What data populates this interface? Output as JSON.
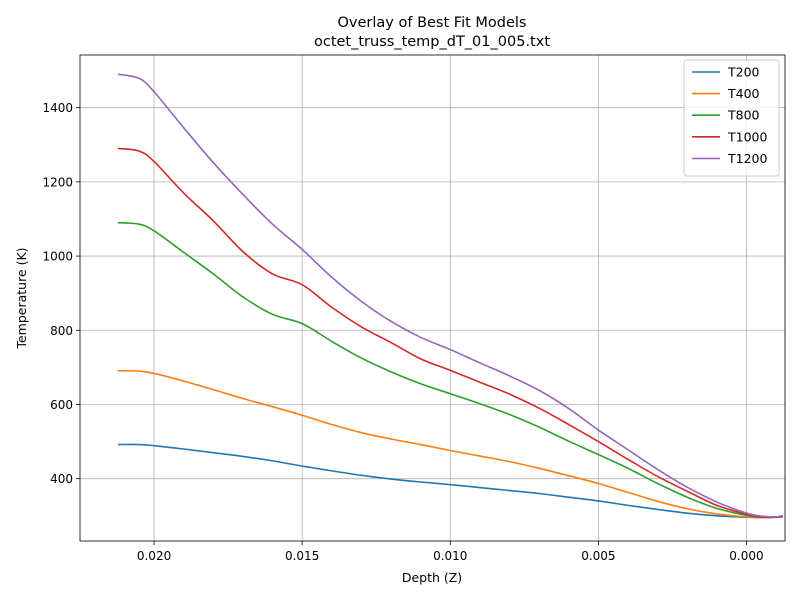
{
  "chart_data": {
    "type": "line",
    "title": "Overlay of Best Fit Models",
    "subtitle": "octet_truss_temp_dT_01_005.txt",
    "xlabel": "Depth (Z)",
    "ylabel": "Temperature (K)",
    "xlim": [
      0.0225,
      -0.0013
    ],
    "ylim": [
      232,
      1542
    ],
    "x_inverted": true,
    "grid": true,
    "legend_position": "top-right",
    "xticks": [
      0.02,
      0.015,
      0.01,
      0.005,
      0.0
    ],
    "xtick_labels": [
      "0.020",
      "0.015",
      "0.010",
      "0.005",
      "0.000"
    ],
    "yticks": [
      400,
      600,
      800,
      1000,
      1200,
      1400
    ],
    "ytick_labels": [
      "400",
      "600",
      "800",
      "1000",
      "1200",
      "1400"
    ],
    "x": [
      0.0212,
      0.0205,
      0.02,
      0.019,
      0.018,
      0.017,
      0.016,
      0.015,
      0.014,
      0.013,
      0.012,
      0.011,
      0.01,
      0.009,
      0.008,
      0.007,
      0.006,
      0.005,
      0.004,
      0.003,
      0.002,
      0.001,
      0.0,
      -0.0005,
      -0.001,
      -0.0012
    ],
    "series": [
      {
        "name": "T200",
        "color": "#1f77b4",
        "values": [
          492,
          492,
          489,
          480,
          470,
          460,
          448,
          434,
          421,
          409,
          399,
          391,
          384,
          376,
          368,
          360,
          350,
          340,
          328,
          317,
          307,
          300,
          296,
          295,
          296,
          297
        ]
      },
      {
        "name": "T400",
        "color": "#ff7f0e",
        "values": [
          691,
          690,
          684,
          663,
          640,
          616,
          594,
          571,
          546,
          524,
          507,
          492,
          476,
          461,
          446,
          428,
          408,
          387,
          363,
          339,
          319,
          305,
          297,
          295,
          296,
          298
        ]
      },
      {
        "name": "T800",
        "color": "#2ca02c",
        "values": [
          1090,
          1086,
          1068,
          1010,
          952,
          890,
          843,
          818,
          770,
          725,
          688,
          656,
          629,
          602,
          573,
          539,
          501,
          465,
          428,
          387,
          350,
          320,
          301,
          296,
          297,
          299
        ]
      },
      {
        "name": "T1000",
        "color": "#d62728",
        "values": [
          1290,
          1283,
          1255,
          1170,
          1095,
          1012,
          952,
          923,
          862,
          809,
          767,
          723,
          692,
          660,
          628,
          590,
          546,
          500,
          452,
          406,
          366,
          328,
          304,
          297,
          296,
          298
        ]
      },
      {
        "name": "T1200",
        "color": "#9467bd",
        "values": [
          1490,
          1479,
          1443,
          1346,
          1252,
          1166,
          1086,
          1018,
          943,
          878,
          824,
          781,
          748,
          712,
          677,
          638,
          589,
          531,
          478,
          425,
          377,
          337,
          307,
          299,
          297,
          300
        ]
      }
    ]
  }
}
